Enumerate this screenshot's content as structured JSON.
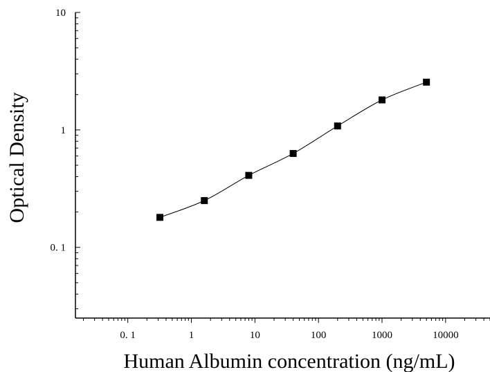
{
  "chart_data": {
    "type": "scatter",
    "title": "",
    "xlabel": "Human Albumin concentration (ng/mL)",
    "ylabel": "Optical Density",
    "x_scale": "log",
    "y_scale": "log",
    "xlim": [
      0.015,
      50000
    ],
    "ylim": [
      0.025,
      10
    ],
    "grid": false,
    "legend": "none",
    "x_ticks": [
      {
        "value": 0.1,
        "label": "0. 1"
      },
      {
        "value": 1,
        "label": "1"
      },
      {
        "value": 10,
        "label": "10"
      },
      {
        "value": 100,
        "label": "100"
      },
      {
        "value": 1000,
        "label": "1000"
      },
      {
        "value": 10000,
        "label": "10000"
      }
    ],
    "y_ticks": [
      {
        "value": 0.1,
        "label": "0. 1"
      },
      {
        "value": 1,
        "label": "1"
      },
      {
        "value": 10,
        "label": "10"
      }
    ],
    "series": [
      {
        "marker": "square",
        "color": "#000000",
        "fit_line": "smooth",
        "x": [
          0.32,
          1.6,
          8,
          40,
          200,
          1000,
          5000
        ],
        "y": [
          0.18,
          0.25,
          0.41,
          0.63,
          1.08,
          1.8,
          2.55
        ]
      }
    ]
  }
}
